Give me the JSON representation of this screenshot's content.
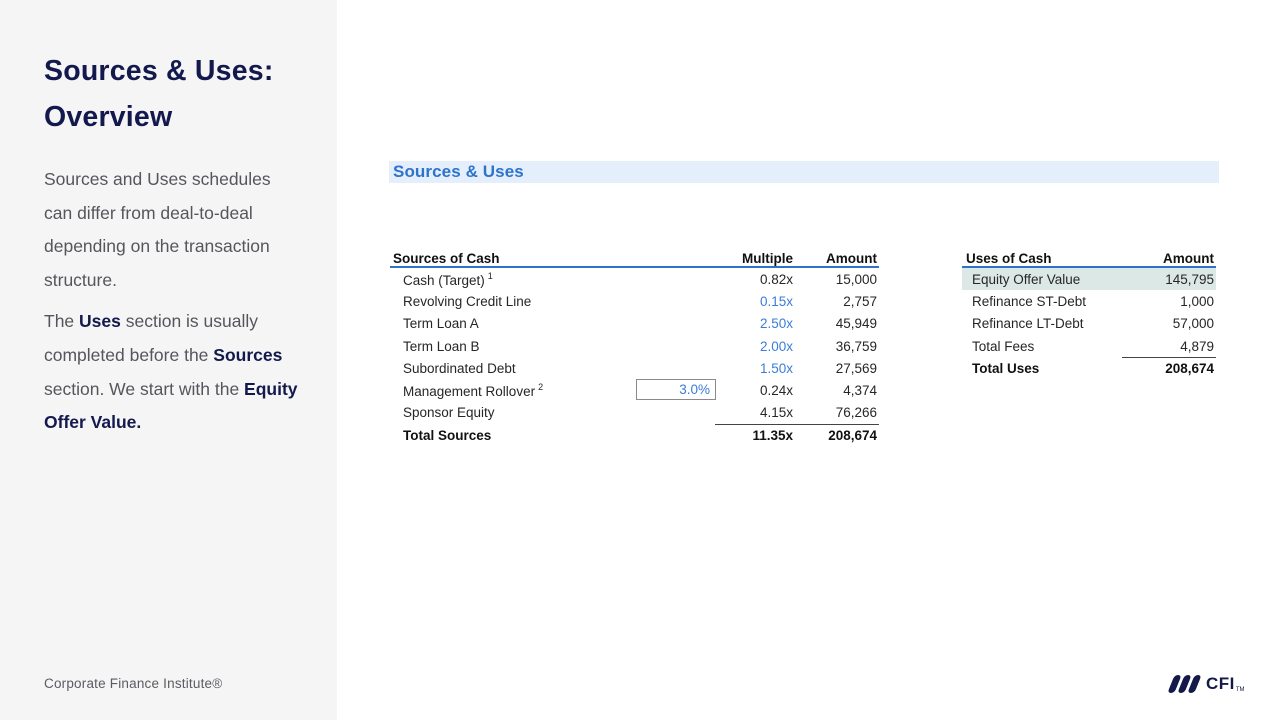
{
  "sidebar": {
    "title_line1": "Sources & Uses:",
    "title_line2": "Overview",
    "paragraph1": "Sources and Uses schedules can differ from deal-to-deal depending on the transaction structure.",
    "paragraph2": {
      "t1": "The ",
      "b1": "Uses",
      "t2": " section is usually completed before the ",
      "b2": "Sources",
      "t3": " section. We start with the ",
      "b3": "Equity Offer Value."
    },
    "footer": "Corporate Finance Institute®"
  },
  "main": {
    "banner_title": "Sources & Uses",
    "sources_table": {
      "headers": {
        "label": "Sources of Cash",
        "multiple": "Multiple",
        "amount": "Amount"
      },
      "rows": [
        {
          "label": "Cash (Target)",
          "sup": "1",
          "multiple": "0.82x",
          "amount": "15,000"
        },
        {
          "label": "Revolving Credit Line",
          "multiple": "0.15x",
          "amount": "2,757"
        },
        {
          "label": "Term Loan A",
          "multiple": "2.50x",
          "amount": "45,949"
        },
        {
          "label": "Term Loan B",
          "multiple": "2.00x",
          "amount": "36,759"
        },
        {
          "label": "Subordinated Debt",
          "multiple": "1.50x",
          "amount": "27,569"
        },
        {
          "label": "Management Rollover",
          "sup": "2",
          "input_value": "3.0%",
          "multiple": "0.24x",
          "amount": "4,374"
        },
        {
          "label": "Sponsor Equity",
          "multiple": "4.15x",
          "amount": "76,266"
        }
      ],
      "total": {
        "label": "Total Sources",
        "multiple": "11.35x",
        "amount": "208,674"
      }
    },
    "uses_table": {
      "headers": {
        "label": "Uses of Cash",
        "amount": "Amount"
      },
      "rows": [
        {
          "label": "Equity Offer Value",
          "amount": "145,795"
        },
        {
          "label": "Refinance ST-Debt",
          "amount": "1,000"
        },
        {
          "label": "Refinance LT-Debt",
          "amount": "57,000"
        },
        {
          "label": "Total Fees",
          "amount": "4,879"
        }
      ],
      "total": {
        "label": "Total Uses",
        "amount": "208,674"
      }
    }
  },
  "branding": {
    "logo_text": "CFI",
    "logo_tm": "TM"
  },
  "colors": {
    "accent_blue": "#2e73cc",
    "banner_bg": "#e4effb",
    "navy": "#13194c",
    "table_rule_blue": "#2e73c8",
    "blue_value": "#3b7dd8",
    "highlight_row_bg": "#dce8e5",
    "sidebar_bg": "#f5f5f6"
  }
}
